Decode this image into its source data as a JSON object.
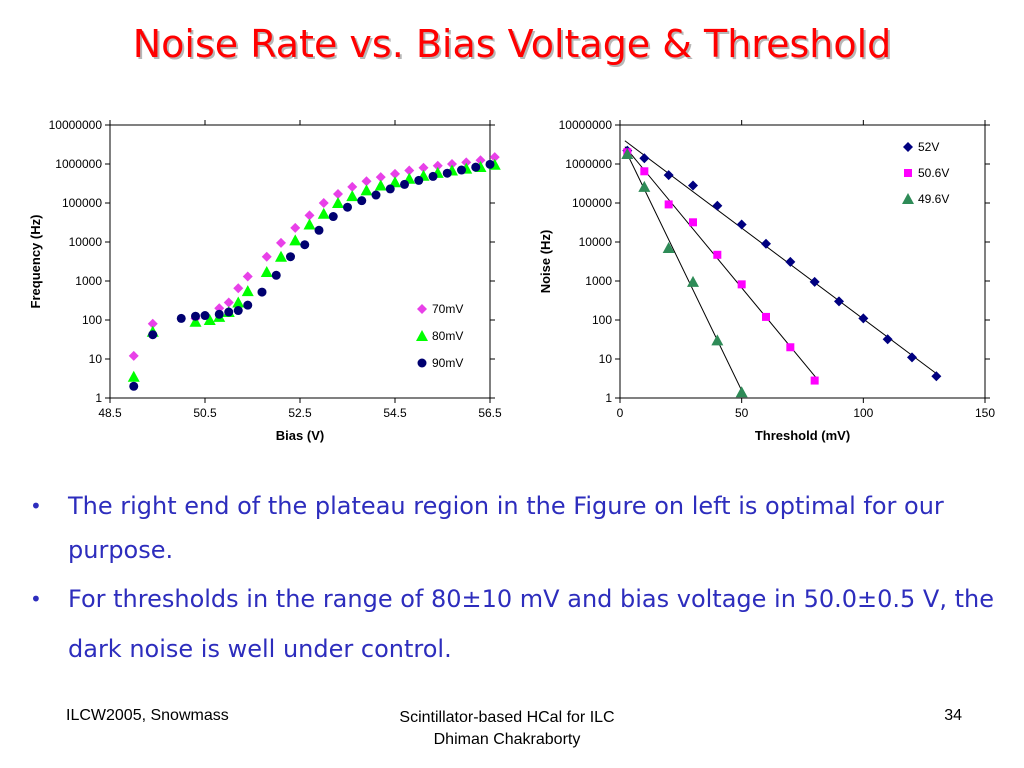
{
  "slide": {
    "title": "Noise Rate vs. Bias Voltage & Threshold",
    "bullets": [
      "The right end of the plateau region in the Figure on left is optimal for our purpose.",
      "For thresholds in the range of 80±10 mV and bias voltage in 50.0±0.5 V, the dark noise is well under control."
    ],
    "footer_left": "ILCW2005, Snowmass",
    "footer_center_line1": "Scintillator-based HCal for ILC",
    "footer_center_line2": "Dhiman Chakraborty",
    "footer_right": "34"
  },
  "chart_data": [
    {
      "type": "scatter",
      "title": "",
      "xlabel": "Bias (V)",
      "ylabel": "Frequency (Hz)",
      "xlim": [
        48.5,
        56.5
      ],
      "ylim": [
        1,
        10000000
      ],
      "yscale": "log",
      "xticks": [
        "48.5",
        "50.5",
        "52.5",
        "54.5",
        "56.5"
      ],
      "yticks": [
        "1",
        "10",
        "100",
        "1000",
        "10000",
        "100000",
        "1000000",
        "10000000"
      ],
      "legend_position": "bottom-right",
      "series": [
        {
          "name": "70mV",
          "color": "#e840e8",
          "marker": "diamond",
          "x": [
            49.0,
            49.4,
            50.3,
            50.8,
            51.0,
            51.2,
            51.4,
            51.8,
            52.1,
            52.4,
            52.7,
            53.0,
            53.3,
            53.6,
            53.9,
            54.2,
            54.5,
            54.8,
            55.1,
            55.4,
            55.7,
            56.0,
            56.3,
            56.6
          ],
          "y": [
            12,
            80,
            110,
            200,
            280,
            650,
            1300,
            4200,
            9500,
            23000,
            48000,
            100000,
            170000,
            260000,
            360000,
            460000,
            560000,
            680000,
            800000,
            900000,
            1000000,
            1100000,
            1250000,
            1500000
          ]
        },
        {
          "name": "80mV",
          "color": "#00ff00",
          "marker": "triangle",
          "x": [
            49.0,
            49.4,
            50.3,
            50.6,
            50.8,
            51.0,
            51.2,
            51.4,
            51.8,
            52.1,
            52.4,
            52.7,
            53.0,
            53.3,
            53.6,
            53.9,
            54.2,
            54.5,
            54.8,
            55.1,
            55.4,
            55.7,
            56.0,
            56.3,
            56.6
          ],
          "y": [
            3.5,
            50,
            90,
            100,
            120,
            160,
            280,
            550,
            1700,
            4200,
            11000,
            28000,
            53000,
            100000,
            150000,
            210000,
            280000,
            340000,
            420000,
            500000,
            590000,
            680000,
            760000,
            840000,
            960000
          ]
        },
        {
          "name": "90mV",
          "color": "#000070",
          "marker": "circle",
          "x": [
            49.0,
            49.4,
            50.0,
            50.3,
            50.5,
            50.8,
            51.0,
            51.2,
            51.4,
            51.7,
            52.0,
            52.3,
            52.6,
            52.9,
            53.2,
            53.5,
            53.8,
            54.1,
            54.4,
            54.7,
            55.0,
            55.3,
            55.6,
            55.9,
            56.2,
            56.5
          ],
          "y": [
            2,
            42,
            110,
            125,
            130,
            140,
            160,
            175,
            240,
            520,
            1400,
            4200,
            8500,
            20000,
            45000,
            78000,
            115000,
            160000,
            230000,
            300000,
            380000,
            480000,
            580000,
            700000,
            830000,
            980000
          ]
        }
      ]
    },
    {
      "type": "scatter",
      "title": "",
      "xlabel": "Threshold (mV)",
      "ylabel": "Noise (Hz)",
      "xlim": [
        0,
        150
      ],
      "ylim": [
        1,
        10000000
      ],
      "yscale": "log",
      "xticks": [
        "0",
        "50",
        "100",
        "150"
      ],
      "yticks": [
        "1",
        "10",
        "100",
        "1000",
        "10000",
        "100000",
        "1000000",
        "10000000"
      ],
      "legend_position": "top-right",
      "trendlines": true,
      "series": [
        {
          "name": "52V",
          "color": "#000080",
          "marker": "diamond",
          "x": [
            3,
            10,
            20,
            30,
            40,
            50,
            60,
            70,
            80,
            90,
            100,
            110,
            120,
            130
          ],
          "y": [
            2200000,
            1400000,
            520000,
            280000,
            85000,
            28000,
            9000,
            3100,
            950,
            300,
            110,
            32,
            11,
            3.6
          ]
        },
        {
          "name": "50.6V",
          "color": "#ff00ff",
          "marker": "square",
          "x": [
            3,
            10,
            20,
            30,
            40,
            50,
            60,
            70,
            80
          ],
          "y": [
            2000000,
            650000,
            92000,
            32000,
            4700,
            820,
            120,
            20,
            2.8
          ]
        },
        {
          "name": "49.6V",
          "color": "#2e8b57",
          "marker": "triangle",
          "x": [
            3,
            10,
            20,
            30,
            40,
            50
          ],
          "y": [
            1800000,
            260000,
            7000,
            950,
            30,
            1.4
          ]
        }
      ]
    }
  ]
}
